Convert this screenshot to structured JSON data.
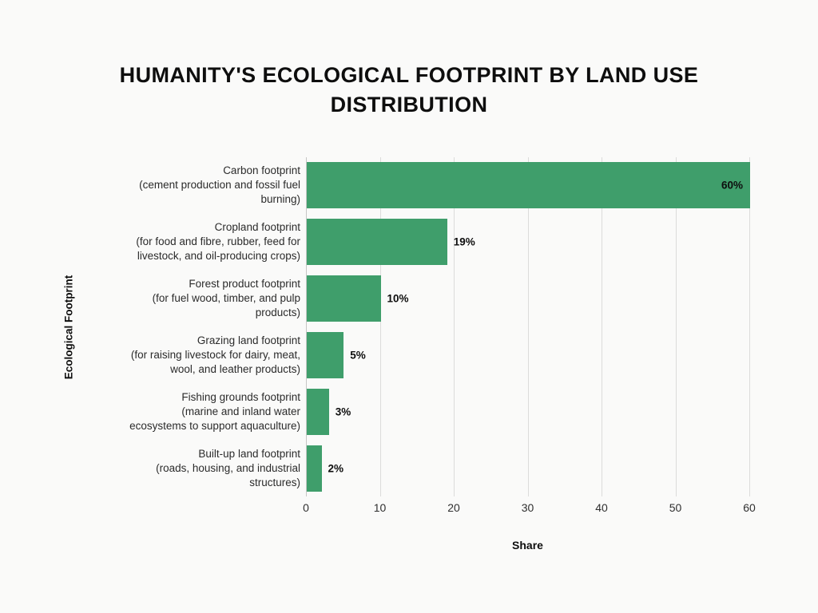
{
  "page": {
    "background_color": "#FAFAF9"
  },
  "header": {
    "title_lines": [
      "HUMANITY'S ECOLOGICAL FOOTPRINT BY LAND USE",
      "DISTRIBUTION"
    ]
  },
  "chart_data": {
    "type": "bar",
    "orientation": "horizontal",
    "title": "HUMANITY'S ECOLOGICAL FOOTPRINT BY LAND USE DISTRIBUTION",
    "xlabel": "Share",
    "ylabel": "Ecological Footprint",
    "xlim": [
      0,
      60
    ],
    "xticks": [
      0,
      10,
      20,
      30,
      40,
      50,
      60
    ],
    "grid": true,
    "legend": false,
    "bar_color": "#3F9E6B",
    "gridline_color": "#DCDCDB",
    "categories": [
      "Carbon footprint (cement production and fossil fuel burning)",
      "Cropland footprint (for food and fibre, rubber, feed for livestock, and oil-producing crops)",
      "Forest product footprint (for fuel wood, timber, and pulp products)",
      "Grazing land footprint (for raising livestock for dairy, meat, wool, and leather products)",
      "Fishing grounds footprint (marine and inland water ecosystems to support aquaculture)",
      "Built-up land footprint (roads, housing, and industrial structures)"
    ],
    "values": [
      60,
      19,
      10,
      5,
      3,
      2
    ],
    "bars": [
      {
        "label_display": "Carbon footprint\n(cement production and fossil fuel\nburning)",
        "value": 60,
        "value_label": "60%",
        "value_label_position": "inside"
      },
      {
        "label_display": "Cropland footprint\n(for food and fibre, rubber, feed for\nlivestock, and oil-producing crops)",
        "value": 19,
        "value_label": "19%",
        "value_label_position": "outside"
      },
      {
        "label_display": "Forest product footprint\n(for fuel wood, timber, and pulp\nproducts)",
        "value": 10,
        "value_label": "10%",
        "value_label_position": "outside"
      },
      {
        "label_display": "Grazing land footprint\n(for raising livestock for dairy, meat,\nwool, and leather products)",
        "value": 5,
        "value_label": "5%",
        "value_label_position": "outside"
      },
      {
        "label_display": "Fishing grounds footprint\n(marine and inland water\necosystems to support aquaculture)",
        "value": 3,
        "value_label": "3%",
        "value_label_position": "outside"
      },
      {
        "label_display": "Built-up land footprint\n(roads, housing, and industrial\nstructures)",
        "value": 2,
        "value_label": "2%",
        "value_label_position": "outside"
      }
    ]
  }
}
